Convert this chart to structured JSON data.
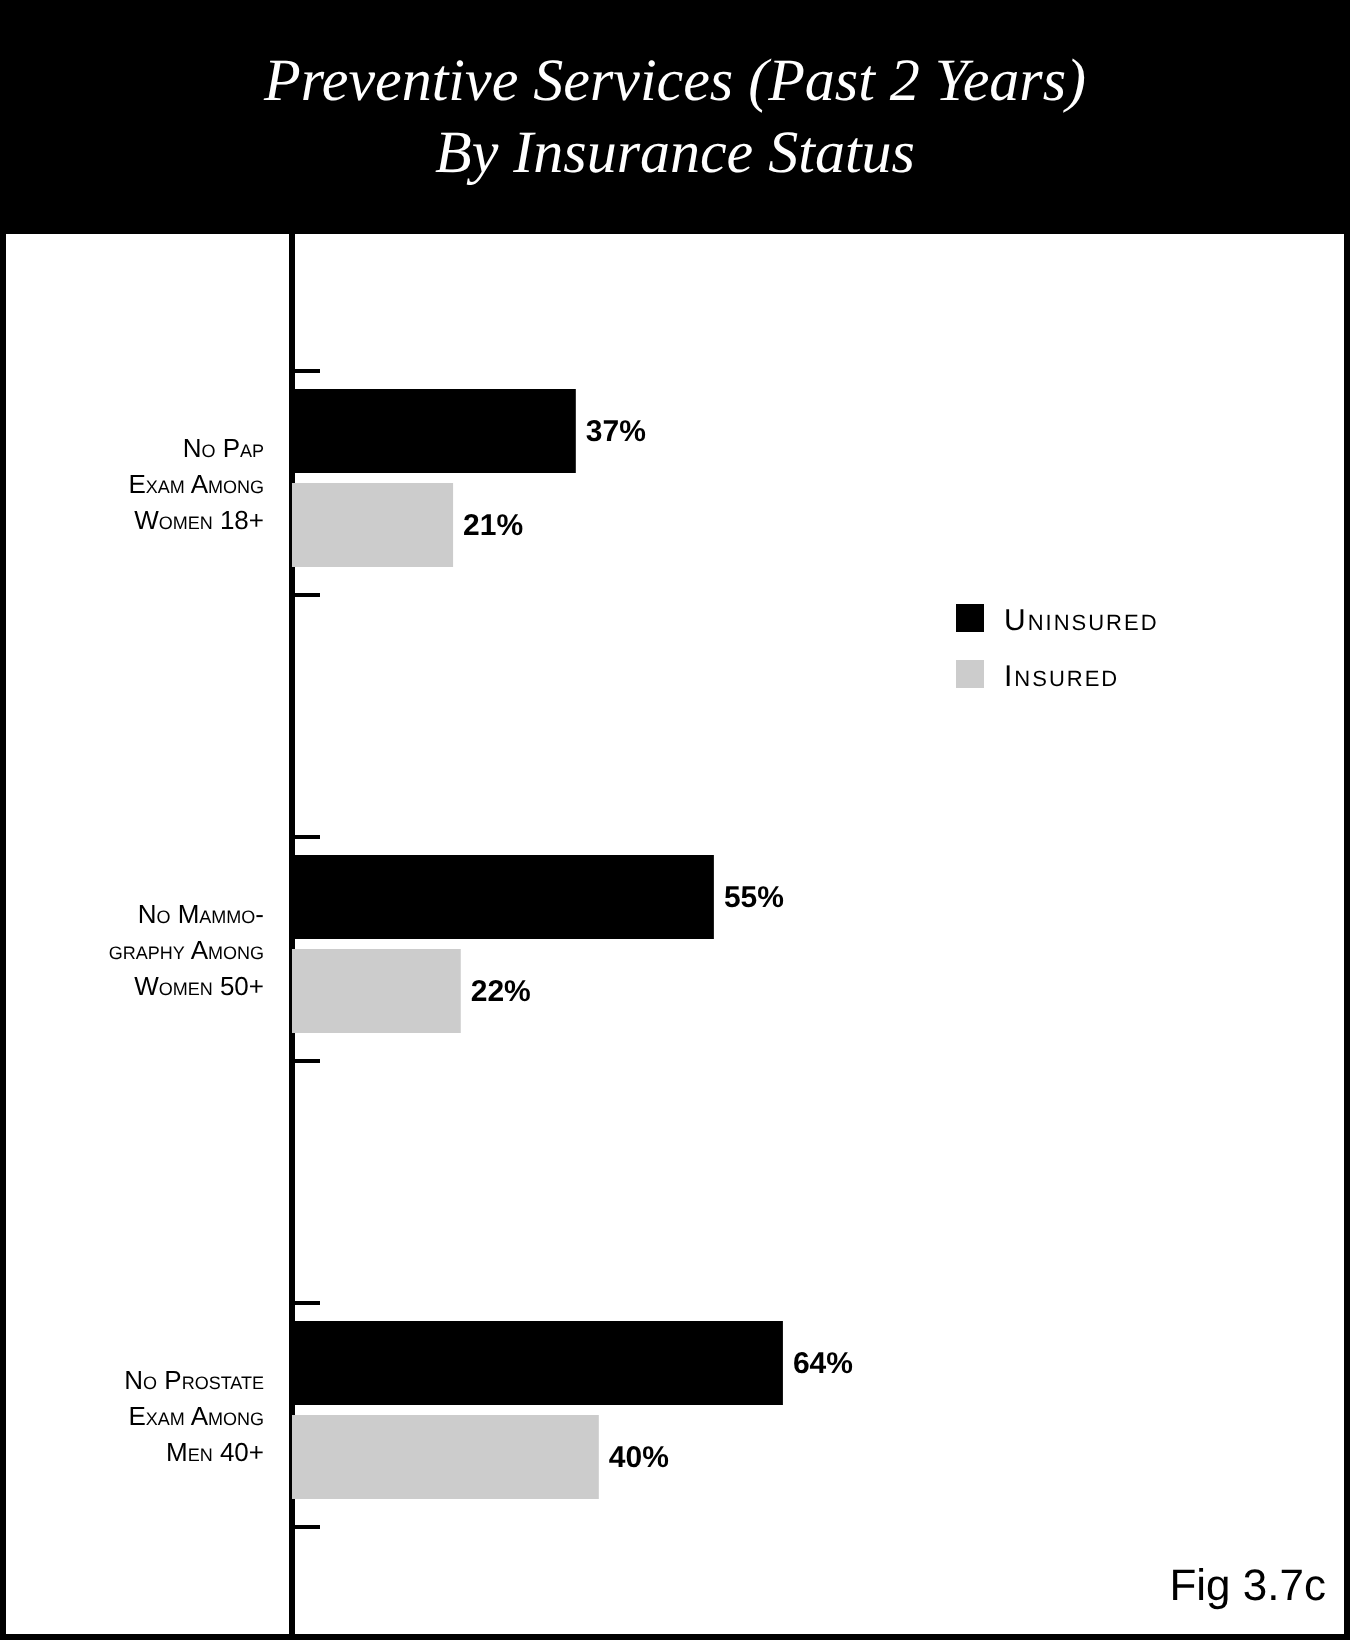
{
  "chart_data": {
    "type": "bar",
    "orientation": "horizontal",
    "title": "Preventive Services (Past 2 Years)\nBy Insurance Status",
    "categories": [
      "No Pap\nExam Among\nWomen 18+",
      "No Mammo-\ngraphy Among\nWomen 50+",
      "No Prostate\nExam Among\nMen 40+"
    ],
    "series": [
      {
        "name": "Uninsured",
        "color": "#000000",
        "values": [
          37,
          55,
          64
        ],
        "value_labels": [
          "37%",
          "55%",
          "64%"
        ]
      },
      {
        "name": "Insured",
        "color": "#cccccc",
        "values": [
          21,
          22,
          40
        ],
        "value_labels": [
          "21%",
          "22%",
          "40%"
        ]
      }
    ],
    "legend": "right",
    "annotations": [
      "Fig 3.7c"
    ]
  }
}
